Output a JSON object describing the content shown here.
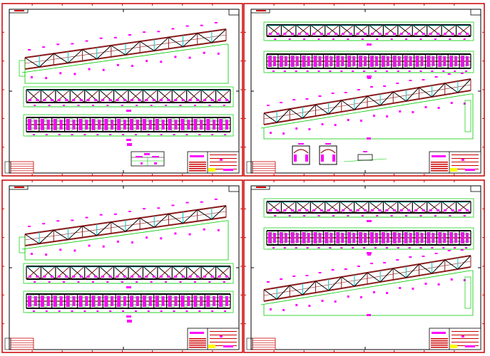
{
  "drawing": {
    "sheet_count": 4,
    "sheets": [
      {
        "id": "sheet-1",
        "layout": "inclined-truss-left"
      },
      {
        "id": "sheet-2",
        "layout": "inclined-truss-right"
      },
      {
        "id": "sheet-3",
        "layout": "inclined-truss-left"
      },
      {
        "id": "sheet-4",
        "layout": "inclined-truss-right"
      }
    ],
    "colors": {
      "border": "#cc0000",
      "frame": "#000000",
      "chord": "#8b1a1a",
      "diagonal": "#000000",
      "vertical": "#00c8c8",
      "outline": "#00cc00",
      "dimension": "#ff00ff",
      "title_block": "#cc0000",
      "highlight": "#ffff00"
    }
  }
}
